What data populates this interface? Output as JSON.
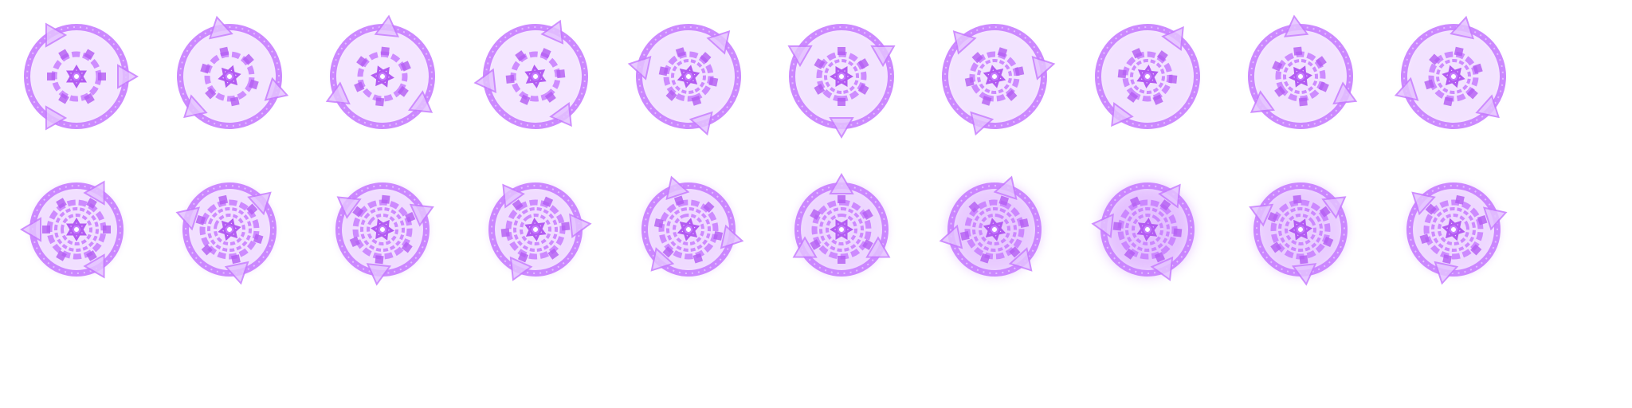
{
  "sprite_sheet": {
    "subject": "magic-circle-animation",
    "colors": {
      "primary": "#c77dff",
      "stroke": "#b35cf2",
      "fill_light": "#e4c2ff",
      "core": "#ffffff"
    },
    "frames": [
      {
        "row": 0,
        "index": 0,
        "rotation": 0,
        "triangle_count": 3,
        "inner_rings": 1,
        "glow": 0.2
      },
      {
        "row": 0,
        "index": 1,
        "rotation": 18,
        "triangle_count": 3,
        "inner_rings": 1,
        "glow": 0.2
      },
      {
        "row": 0,
        "index": 2,
        "rotation": 36,
        "triangle_count": 3,
        "inner_rings": 1,
        "glow": 0.2
      },
      {
        "row": 0,
        "index": 3,
        "rotation": 54,
        "triangle_count": 3,
        "inner_rings": 1,
        "glow": 0.2
      },
      {
        "row": 0,
        "index": 4,
        "rotation": 72,
        "triangle_count": 3,
        "inner_rings": 2,
        "glow": 0.25
      },
      {
        "row": 0,
        "index": 5,
        "rotation": 90,
        "triangle_count": 3,
        "inner_rings": 2,
        "glow": 0.25
      },
      {
        "row": 0,
        "index": 6,
        "rotation": 108,
        "triangle_count": 3,
        "inner_rings": 2,
        "glow": 0.25
      },
      {
        "row": 0,
        "index": 7,
        "rotation": 126,
        "triangle_count": 2,
        "inner_rings": 2,
        "glow": 0.3
      },
      {
        "row": 0,
        "index": 8,
        "rotation": 144,
        "triangle_count": 3,
        "inner_rings": 2,
        "glow": 0.3
      },
      {
        "row": 0,
        "index": 9,
        "rotation": 162,
        "triangle_count": 3,
        "inner_rings": 2,
        "glow": 0.3
      },
      {
        "row": 1,
        "index": 10,
        "rotation": 180,
        "triangle_count": 3,
        "inner_rings": 3,
        "glow": 0.35
      },
      {
        "row": 1,
        "index": 11,
        "rotation": 198,
        "triangle_count": 3,
        "inner_rings": 3,
        "glow": 0.35
      },
      {
        "row": 1,
        "index": 12,
        "rotation": 216,
        "triangle_count": 3,
        "inner_rings": 3,
        "glow": 0.4
      },
      {
        "row": 1,
        "index": 13,
        "rotation": 234,
        "triangle_count": 3,
        "inner_rings": 3,
        "glow": 0.4
      },
      {
        "row": 1,
        "index": 14,
        "rotation": 252,
        "triangle_count": 3,
        "inner_rings": 3,
        "glow": 0.45
      },
      {
        "row": 1,
        "index": 15,
        "rotation": 270,
        "triangle_count": 3,
        "inner_rings": 3,
        "glow": 0.55
      },
      {
        "row": 1,
        "index": 16,
        "rotation": 288,
        "triangle_count": 3,
        "inner_rings": 3,
        "glow": 0.8
      },
      {
        "row": 1,
        "index": 17,
        "rotation": 306,
        "triangle_count": 3,
        "inner_rings": 3,
        "glow": 1.0
      },
      {
        "row": 1,
        "index": 18,
        "rotation": 324,
        "triangle_count": 3,
        "inner_rings": 3,
        "glow": 0.75
      },
      {
        "row": 1,
        "index": 19,
        "rotation": 342,
        "triangle_count": 3,
        "inner_rings": 3,
        "glow": 0.5
      }
    ]
  }
}
